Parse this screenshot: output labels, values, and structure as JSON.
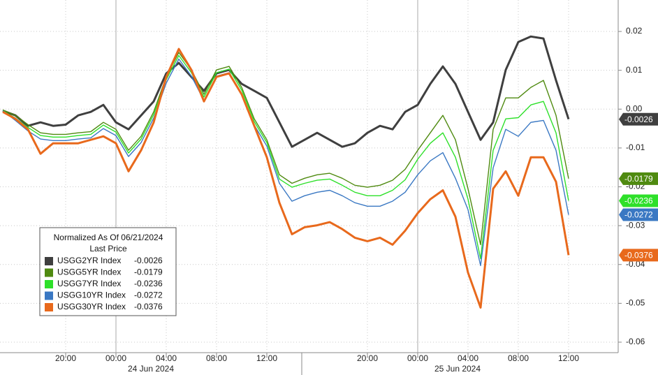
{
  "chart_data": {
    "type": "line",
    "legend_title": "Normalized As Of 06/21/2024",
    "legend_subtitle": "Last Price",
    "categories": [
      null,
      null,
      null,
      null,
      null,
      "20:00",
      null,
      null,
      null,
      "00:00",
      null,
      null,
      null,
      "04:00",
      null,
      null,
      null,
      "08:00",
      null,
      null,
      null,
      "12:00",
      null,
      null,
      null,
      null,
      null,
      null,
      null,
      "20:00",
      null,
      null,
      null,
      "00:00",
      null,
      null,
      null,
      "04:00",
      null,
      null,
      null,
      "08:00",
      null,
      null,
      null,
      "12:00"
    ],
    "date_labels": [
      "24 Jun 2024",
      "25 Jun 2024"
    ],
    "series": [
      {
        "name": "USGG2YR Index",
        "color": "#3f3f3f",
        "values": [
          -0.0004,
          -0.0016,
          -0.0043,
          -0.0034,
          -0.0043,
          -0.004,
          -0.0016,
          -0.0007,
          0.0011,
          -0.0034,
          -0.0052,
          -0.0016,
          0.002,
          0.0092,
          0.0119,
          0.0083,
          0.0047,
          0.0092,
          0.0101,
          0.0065,
          0.0047,
          0.0029,
          -0.0034,
          -0.0097,
          -0.0079,
          -0.0061,
          -0.0079,
          -0.0097,
          -0.0088,
          -0.0061,
          -0.0043,
          -0.0052,
          -0.0007,
          0.0011,
          0.0065,
          0.011,
          0.0065,
          -0.0007,
          -0.0079,
          -0.0034,
          0.0101,
          0.0173,
          0.0187,
          0.0182,
          0.0074,
          -0.0026
        ]
      },
      {
        "name": "USGG5YR Index",
        "color": "#4f8a10",
        "values": [
          -0.0002,
          -0.0016,
          -0.004,
          -0.0061,
          -0.0065,
          -0.0065,
          -0.0061,
          -0.0058,
          -0.0034,
          -0.0052,
          -0.0106,
          -0.007,
          -0.0007,
          0.0083,
          0.0146,
          0.0101,
          0.0038,
          0.0101,
          0.011,
          0.0056,
          -0.0025,
          -0.0079,
          -0.0169,
          -0.0191,
          -0.0178,
          -0.0169,
          -0.0165,
          -0.0178,
          -0.0196,
          -0.0201,
          -0.0196,
          -0.0183,
          -0.0155,
          -0.0106,
          -0.0061,
          -0.0016,
          -0.0079,
          -0.0205,
          -0.0349,
          -0.0052,
          0.0029,
          0.0029,
          0.0056,
          0.0074,
          -0.0016,
          -0.0179
        ]
      },
      {
        "name": "USGG7YR Index",
        "color": "#2ee02a",
        "values": [
          -0.0004,
          -0.0023,
          -0.0047,
          -0.0068,
          -0.0072,
          -0.0072,
          -0.0068,
          -0.0065,
          -0.0041,
          -0.0059,
          -0.0113,
          -0.0077,
          -0.0014,
          0.0076,
          0.0138,
          0.0094,
          0.0031,
          0.0094,
          0.0103,
          0.0049,
          -0.0032,
          -0.0086,
          -0.018,
          -0.0201,
          -0.0191,
          -0.0183,
          -0.018,
          -0.0196,
          -0.0214,
          -0.0223,
          -0.0223,
          -0.0209,
          -0.0182,
          -0.0129,
          -0.0088,
          -0.0061,
          -0.0124,
          -0.0232,
          -0.0385,
          -0.0106,
          -0.0025,
          -0.0022,
          0.0011,
          0.002,
          -0.0061,
          -0.0236
        ]
      },
      {
        "name": "USGG10YR Index",
        "color": "#3a78c3",
        "values": [
          -0.0004,
          -0.0029,
          -0.0056,
          -0.0077,
          -0.0081,
          -0.0081,
          -0.0077,
          -0.0074,
          -0.005,
          -0.0068,
          -0.0122,
          -0.0086,
          -0.0023,
          0.0067,
          0.0129,
          0.0085,
          0.0022,
          0.0085,
          0.0094,
          0.004,
          -0.0041,
          -0.0095,
          -0.0191,
          -0.0237,
          -0.0223,
          -0.0214,
          -0.0209,
          -0.0223,
          -0.0241,
          -0.025,
          -0.025,
          -0.0237,
          -0.0214,
          -0.0169,
          -0.0133,
          -0.0112,
          -0.0178,
          -0.0259,
          -0.0403,
          -0.0151,
          -0.0052,
          -0.007,
          -0.0034,
          -0.0029,
          -0.0106,
          -0.0272
        ]
      },
      {
        "name": "USGG30YR Index",
        "color": "#e8691c",
        "values": [
          -0.0007,
          -0.0025,
          -0.0052,
          -0.0115,
          -0.0088,
          -0.0088,
          -0.0088,
          -0.0079,
          -0.007,
          -0.0088,
          -0.016,
          -0.0106,
          -0.0034,
          0.0083,
          0.0155,
          0.0101,
          0.002,
          0.0083,
          0.0092,
          0.0038,
          -0.0043,
          -0.0124,
          -0.0241,
          -0.0322,
          -0.0304,
          -0.0299,
          -0.0291,
          -0.0309,
          -0.0331,
          -0.034,
          -0.0331,
          -0.0349,
          -0.0313,
          -0.0268,
          -0.0232,
          -0.0209,
          -0.0277,
          -0.0421,
          -0.0511,
          -0.0205,
          -0.016,
          -0.0223,
          -0.0124,
          -0.0124,
          -0.0187,
          -0.0376
        ]
      }
    ],
    "ylim": [
      -0.0627,
      0.0281
    ],
    "yticks": [
      0.02,
      0.01,
      {
        "value": 0,
        "label": "0.00"
      },
      -0.01,
      -0.02,
      -0.03,
      -0.04,
      -0.05,
      -0.06
    ],
    "grid": true
  }
}
